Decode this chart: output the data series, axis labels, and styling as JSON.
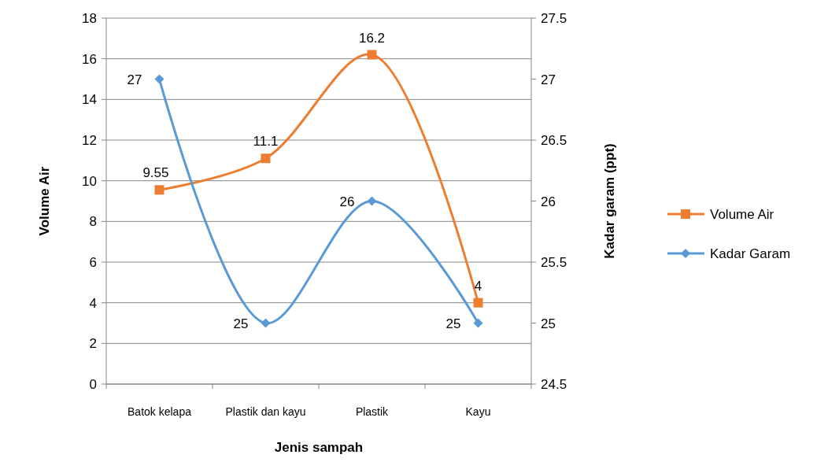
{
  "chart_data": {
    "type": "line",
    "xlabel": "Jenis sampah",
    "ylabel": "Volume Air",
    "y2label": "Kadar garam  (ppt)",
    "categories": [
      "Batok kelapa",
      "Plastik dan kayu",
      "Plastik",
      "Kayu"
    ],
    "series": [
      {
        "name": "Volume Air",
        "color": "#ed7d31",
        "values": [
          9.55,
          11.1,
          16.2,
          4
        ],
        "marker": "square"
      },
      {
        "name": "Kadar Garam",
        "color": "#5b9bd5",
        "values": [
          27,
          25,
          26,
          25
        ],
        "axis": "y2",
        "marker": "diamond"
      }
    ],
    "ylim": [
      0,
      18
    ],
    "yticks": [
      0,
      2,
      4,
      6,
      8,
      10,
      12,
      14,
      16,
      18
    ],
    "y2lim": [
      24.5,
      27.5
    ],
    "y2ticks": [
      24.5,
      25,
      25.5,
      26,
      26.5,
      27,
      27.5
    ],
    "grid": "y",
    "legend": "right",
    "data_labels": true,
    "line_style": "solid"
  }
}
